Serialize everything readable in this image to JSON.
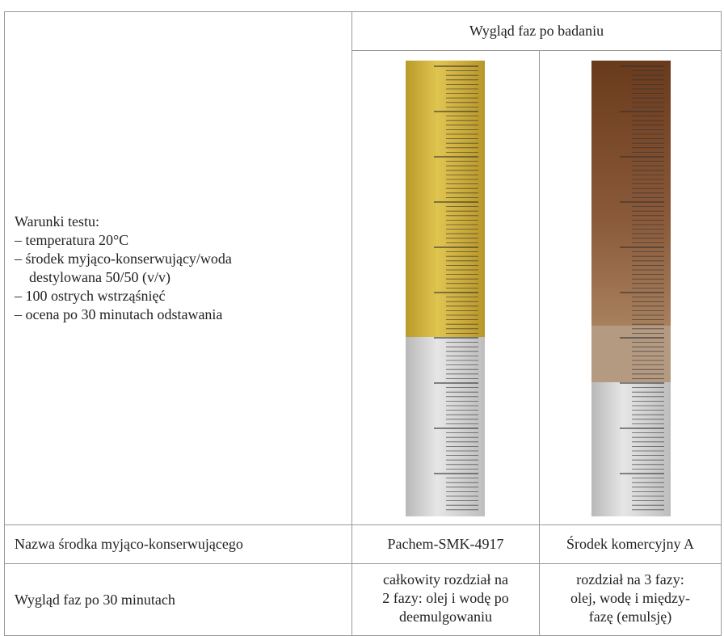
{
  "table": {
    "header": "Wygląd faz po badaniu",
    "conditions": {
      "title": "Warunki testu:",
      "items": [
        "– temperatura 20°C",
        "– środek myjąco-konserwujący/woda",
        "destylowana 50/50 (v/v)",
        "– 100 ostrych wstrząśnięć",
        "– ocena po 30 minutach odstawania"
      ]
    },
    "rows": [
      [
        "Nazwa środka myjąco-konserwującego",
        "Pachem-SMK-4917",
        "Środek komercyjny A"
      ],
      [
        "Wygląd faz po 30 minutach",
        [
          "całkowity rozdział na",
          "2 fazy: olej i wodę po",
          "deemulgowaniu"
        ],
        [
          "rozdział na 3 fazy:",
          "olej, wodę i między-",
          "fazę (emulsję)"
        ]
      ]
    ]
  }
}
